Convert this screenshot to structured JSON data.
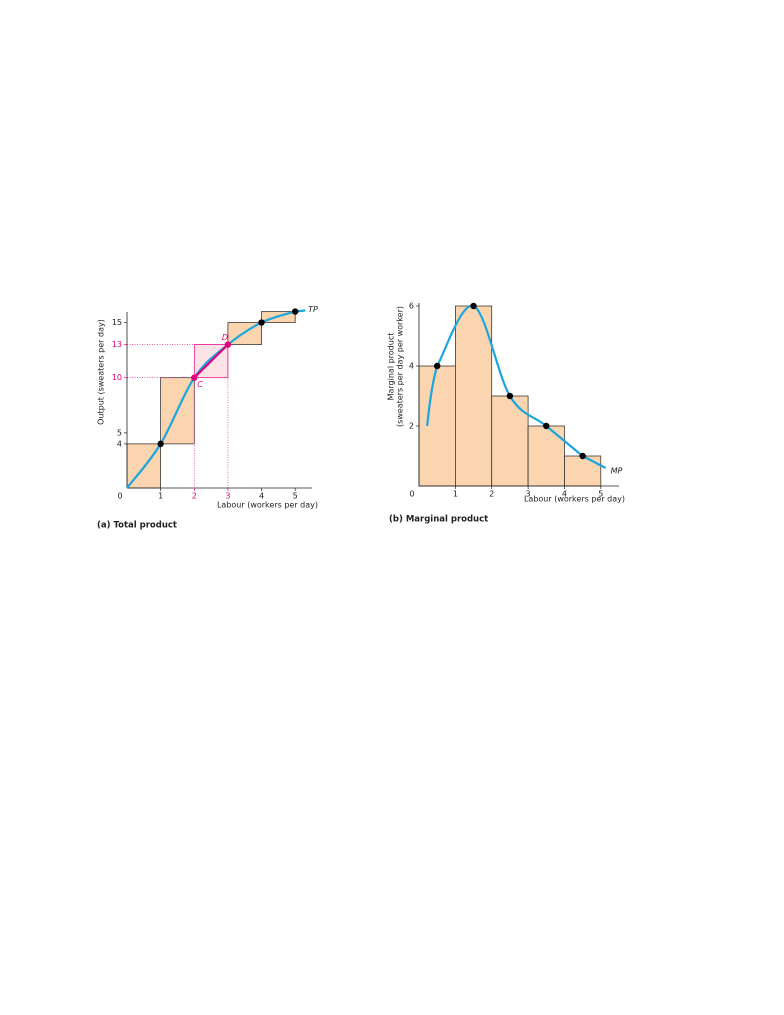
{
  "chart_data": [
    {
      "type": "line",
      "caption": "(a) Total product",
      "xlabel": "Labour (workers per day)",
      "ylabel": "Output (sweaters per day)",
      "x": [
        0,
        1,
        2,
        3,
        4,
        5
      ],
      "values": [
        0,
        4,
        10,
        13,
        15,
        16
      ],
      "curve_label": "TP",
      "point_labels": [
        null,
        null,
        "C",
        "D",
        null,
        null
      ],
      "xlim": [
        0,
        5.5
      ],
      "ylim": [
        0,
        16.5
      ],
      "xticks": [
        0,
        1,
        2,
        3,
        4,
        5
      ],
      "yticks": [
        4,
        5,
        10,
        13,
        15
      ],
      "bar_color": "#fbd5b0",
      "line_color": "#1aa6df",
      "highlight_color": "#e5007d"
    },
    {
      "type": "histogram",
      "caption": "(b) Marginal product",
      "xlabel": "Labour (workers per day)",
      "ylabel": [
        "Marginal product",
        "(sweaters per day per worker)"
      ],
      "bins": [
        0,
        1,
        2,
        3,
        4,
        5
      ],
      "values": [
        4,
        6,
        3,
        2,
        1
      ],
      "curve_label": "MP",
      "xlim": [
        0,
        5.5
      ],
      "ylim": [
        0,
        6.3
      ],
      "xticks": [
        0,
        1,
        2,
        3,
        4,
        5
      ],
      "yticks": [
        2,
        4,
        6
      ],
      "bar_color": "#fbd5b0",
      "line_color": "#1aa6df"
    }
  ]
}
